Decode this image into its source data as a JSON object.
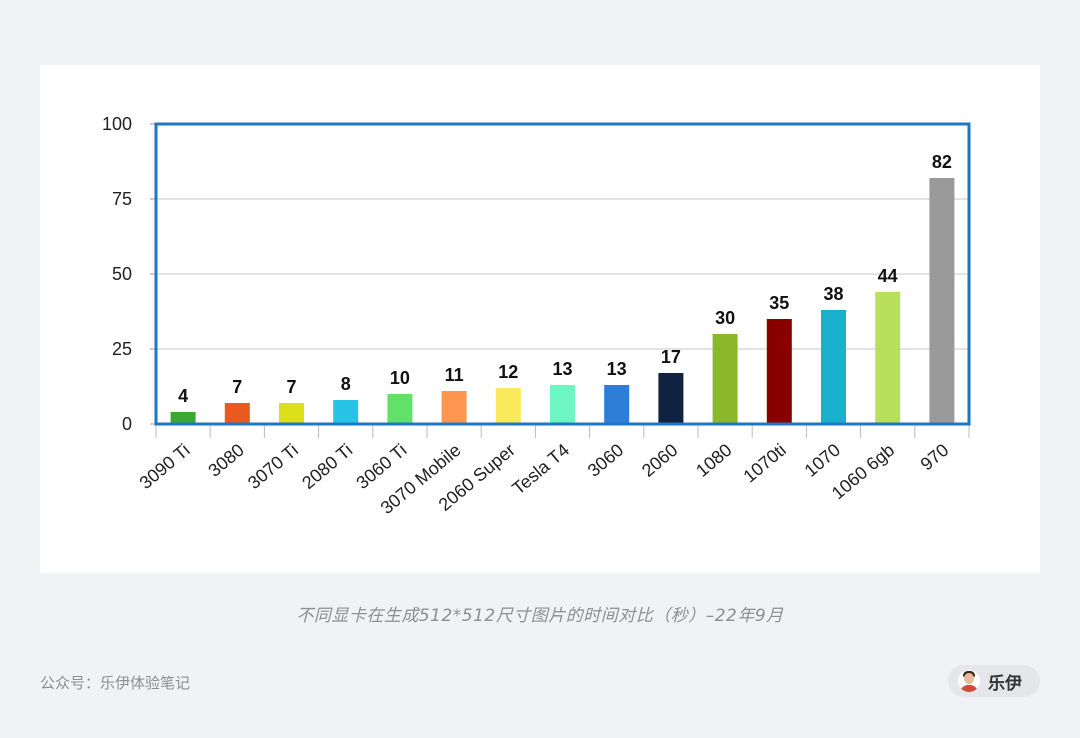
{
  "chart_data": {
    "type": "bar",
    "categories": [
      "3090 Ti",
      "3080",
      "3070 Ti",
      "2080 Ti",
      "3060 Ti",
      "3070 Mobile",
      "2060 Super",
      "Tesla T4",
      "3060",
      "2060",
      "1080",
      "1070ti",
      "1070",
      "1060 6gb",
      "970"
    ],
    "values": [
      4,
      7,
      7,
      8,
      10,
      11,
      12,
      13,
      13,
      17,
      30,
      35,
      38,
      44,
      82
    ],
    "colors": [
      "#3aa832",
      "#e85a1e",
      "#dce01a",
      "#28c4e6",
      "#62e06a",
      "#ff9650",
      "#fbe95c",
      "#6ef5c4",
      "#2e7ed8",
      "#0f2340",
      "#8ab82a",
      "#8a0000",
      "#1ab0cc",
      "#b8e05a",
      "#9a9a9a"
    ],
    "yticks": [
      0,
      25,
      50,
      75,
      100
    ],
    "ylim": [
      0,
      100
    ],
    "grid": true,
    "frame_color": "#1f77c4"
  },
  "caption": "不同显卡在生成512*512尺寸图片的时间对比（秒）–22年9月",
  "footer": {
    "account": "公众号：乐伊体验笔记",
    "author": "乐伊"
  }
}
